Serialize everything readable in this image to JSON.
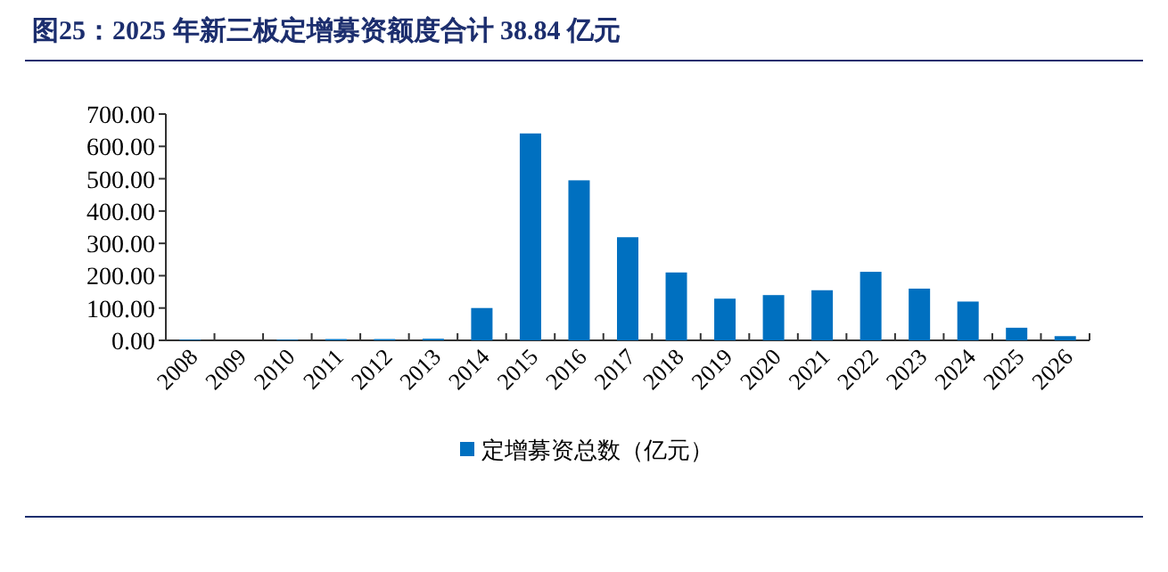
{
  "chart_data": {
    "type": "bar",
    "title": "图25：2025 年新三板定增募资额度合计 38.84 亿元",
    "categories": [
      "2008",
      "2009",
      "2010",
      "2011",
      "2012",
      "2013",
      "2014",
      "2015",
      "2016",
      "2017",
      "2018",
      "2019",
      "2020",
      "2021",
      "2022",
      "2023",
      "2024",
      "2025",
      "2026"
    ],
    "series": [
      {
        "name": "定增募资总数（亿元）",
        "color": "#0070c0",
        "values": [
          2,
          0,
          2,
          4,
          4,
          5,
          100,
          640,
          495,
          319,
          210,
          129,
          140,
          155,
          212,
          160,
          120,
          39,
          13
        ]
      }
    ],
    "ylim": [
      0,
      700
    ],
    "yticks": [
      {
        "value": 0,
        "label": "0.00"
      },
      {
        "value": 100,
        "label": "100.00"
      },
      {
        "value": 200,
        "label": "200.00"
      },
      {
        "value": 300,
        "label": "300.00"
      },
      {
        "value": 400,
        "label": "400.00"
      },
      {
        "value": 500,
        "label": "500.00"
      },
      {
        "value": 600,
        "label": "600.00"
      },
      {
        "value": 700,
        "label": "700.00"
      }
    ],
    "grid": false,
    "legend": "bottom"
  }
}
